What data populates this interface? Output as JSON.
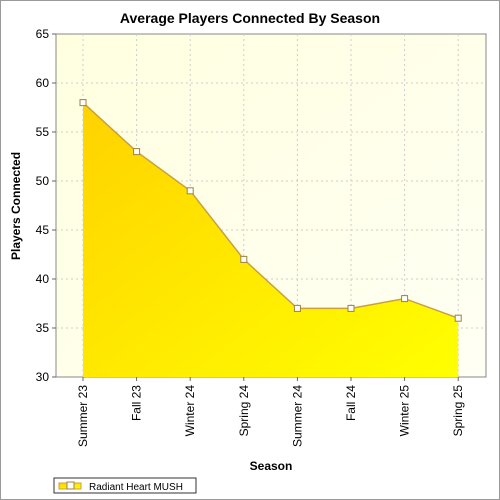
{
  "chart_data": {
    "type": "area",
    "title": "Average Players Connected By Season",
    "xlabel": "Season",
    "ylabel": "Players Connected",
    "categories": [
      "Summer 23",
      "Fall 23",
      "Winter 24",
      "Spring 24",
      "Summer 24",
      "Fall 24",
      "Winter 25",
      "Spring 25"
    ],
    "series": [
      {
        "name": "Radiant Heart MUSH",
        "values": [
          58,
          53,
          49,
          42,
          37,
          37,
          38,
          36
        ]
      }
    ],
    "ylim": [
      30,
      65
    ],
    "yticks": [
      30,
      35,
      40,
      45,
      50,
      55,
      60,
      65
    ],
    "grid": true,
    "legend_position": "bottom-left",
    "colors": {
      "fill_top": "#ffd400",
      "fill_bottom": "#fff200",
      "line": "#c8a040",
      "marker_fill": "#ffffff",
      "marker_stroke": "#a08040",
      "plot_bg": "#ffffe8",
      "grid": "#cccccc"
    }
  }
}
